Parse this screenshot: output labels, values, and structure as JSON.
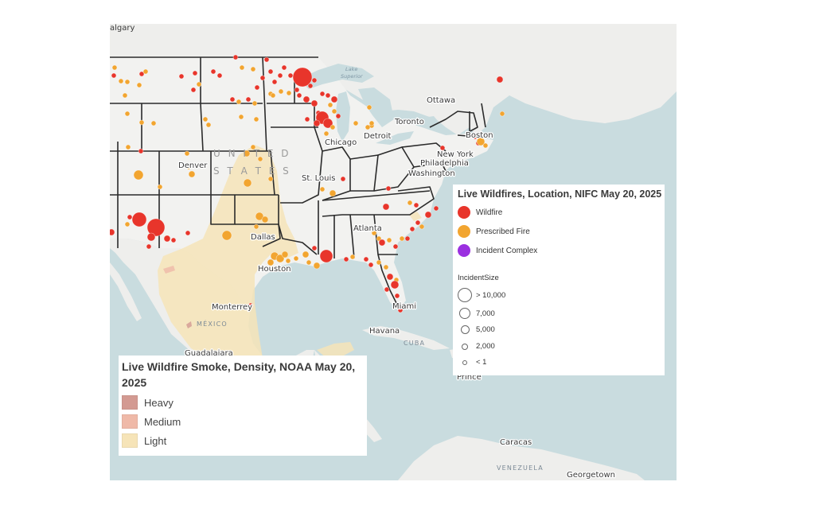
{
  "map": {
    "cities": [
      {
        "name": "Calgary",
        "text": "algary"
      },
      {
        "name": "Ottawa",
        "text": "Ottawa"
      },
      {
        "name": "Toronto",
        "text": "Toronto"
      },
      {
        "name": "Boston",
        "text": "Boston"
      },
      {
        "name": "New York",
        "text": "New York"
      },
      {
        "name": "Philadelphia",
        "text": "Philadelphia"
      },
      {
        "name": "Washington",
        "text": "Washington"
      },
      {
        "name": "Detroit",
        "text": "Detroit"
      },
      {
        "name": "Chicago",
        "text": "Chicago"
      },
      {
        "name": "St. Louis",
        "text": "St. Louis"
      },
      {
        "name": "Denver",
        "text": "Denver"
      },
      {
        "name": "Dallas",
        "text": "Dallas"
      },
      {
        "name": "Houston",
        "text": "Houston"
      },
      {
        "name": "Atlanta",
        "text": "Atlanta"
      },
      {
        "name": "Miami",
        "text": "Miami"
      },
      {
        "name": "Havana",
        "text": "Havana"
      },
      {
        "name": "Monterrey",
        "text": "Monterrey"
      },
      {
        "name": "Guadalajara",
        "text": "Guadalajara"
      },
      {
        "name": "Caracas",
        "text": "Caracas"
      },
      {
        "name": "Georgetown",
        "text": "Georgetown"
      },
      {
        "name": "Prince",
        "text": "Prince"
      }
    ],
    "region_labels": {
      "united": "U N I T E D",
      "states": "S T A T E S",
      "mexico": "MÉXICO",
      "cuba": "CUBA",
      "venezuela": "VENEZUELA",
      "lake_superior_1": "Lake",
      "lake_superior_2": "Superior"
    },
    "colors": {
      "water": "#c9dcdf",
      "land": "#eeeeec",
      "state_lines": "#2b2b2b",
      "wildfire": "#e8352b",
      "prescribed_fire": "#f2a530",
      "incident_complex": "#9b30e0",
      "smoke_heavy": "#d39a92",
      "smoke_medium": "#efb9a8",
      "smoke_light": "#f6e4b8"
    }
  },
  "fires_legend": {
    "title": "Live Wildfires, Location, NIFC May 20, 2025",
    "categories": [
      {
        "label": "Wildfire",
        "color": "#e8352b"
      },
      {
        "label": "Prescribed Fire",
        "color": "#f2a530"
      },
      {
        "label": "Incident Complex",
        "color": "#9b30e0"
      }
    ],
    "size_title": "IncidentSize",
    "sizes": [
      {
        "label": "> 10,000"
      },
      {
        "label": "7,000"
      },
      {
        "label": "5,000"
      },
      {
        "label": "2,000"
      },
      {
        "label": "< 1"
      }
    ]
  },
  "smoke_legend": {
    "title": "Live Wildfire Smoke, Density, NOAA May 20, 2025",
    "levels": [
      {
        "label": "Heavy",
        "color": "#d39a92"
      },
      {
        "label": "Medium",
        "color": "#efb9a8"
      },
      {
        "label": "Light",
        "color": "#f6e4b8"
      }
    ]
  }
}
